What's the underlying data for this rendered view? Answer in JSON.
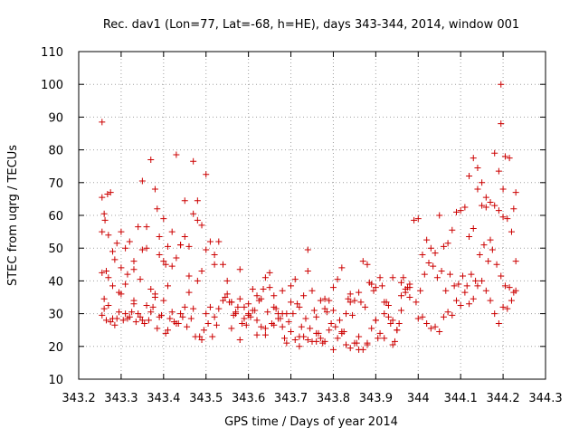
{
  "chart_data": {
    "type": "scatter",
    "title": "Rec. dav1 (Lon=77, Lat=-68, h=HE), days 343-344, 2014, window 001",
    "xlabel": "GPS time / Days of year 2014",
    "ylabel": "STEC from uqrg / TECUs",
    "xlim": [
      343.2,
      344.3
    ],
    "ylim": [
      10,
      110
    ],
    "xticks": [
      343.2,
      343.3,
      343.4,
      343.5,
      343.6,
      343.7,
      343.8,
      343.9,
      344.0,
      344.1,
      344.2,
      344.3
    ],
    "xtick_labels": [
      "343.2",
      "343.3",
      "343.4",
      "343.5",
      "343.6",
      "343.7",
      "343.8",
      "343.9",
      "344",
      "344.1",
      "344.2",
      "344.3"
    ],
    "yticks": [
      10,
      20,
      30,
      40,
      50,
      60,
      70,
      80,
      90,
      100,
      110
    ],
    "ytick_labels": [
      "10",
      "20",
      "30",
      "40",
      "50",
      "60",
      "70",
      "80",
      "90",
      "100",
      "110"
    ],
    "grid": true,
    "marker": "+",
    "marker_color": "#cc0000",
    "series": [
      {
        "x": [
          343.255,
          343.255,
          343.26,
          343.268,
          343.275,
          343.255,
          343.262,
          343.27,
          343.28,
          343.29,
          343.3,
          343.31,
          343.32,
          343.33,
          343.34,
          343.35,
          343.36,
          343.37,
          343.38,
          343.385,
          343.39,
          343.4,
          343.405,
          343.41,
          343.42,
          343.43,
          343.44,
          343.45,
          343.46,
          343.47,
          343.48,
          343.49,
          343.5,
          343.51,
          343.52,
          343.53,
          343.255,
          343.265,
          343.28,
          343.295,
          343.31,
          343.33,
          343.35,
          343.37,
          343.39,
          343.41,
          343.43,
          343.45,
          343.47,
          343.49,
          343.26,
          343.27,
          343.285,
          343.3,
          343.315,
          343.33,
          343.345,
          343.36,
          343.38,
          343.4,
          343.42,
          343.44,
          343.46,
          343.48,
          343.5,
          343.52,
          343.26,
          343.28,
          343.3,
          343.32,
          343.34,
          343.36,
          343.38,
          343.4,
          343.42,
          343.44,
          343.46,
          343.48,
          343.5,
          343.52,
          343.255,
          343.275,
          343.295,
          343.315,
          343.335,
          343.355,
          343.375,
          343.395,
          343.415,
          343.435,
          343.455,
          343.475,
          343.495,
          343.515,
          343.265,
          343.285,
          343.305,
          343.325,
          343.345,
          343.365,
          343.385,
          343.405,
          343.425,
          343.445,
          343.465,
          343.485,
          343.505,
          343.525,
          343.27,
          343.29,
          343.31,
          343.33,
          343.35,
          343.37,
          343.39,
          343.41,
          343.43,
          343.45,
          343.47,
          343.49,
          343.51,
          343.53,
          343.54,
          343.55,
          343.56,
          343.57,
          343.58,
          343.59,
          343.6,
          343.61,
          343.62,
          343.63,
          343.64,
          343.65,
          343.66,
          343.67,
          343.68,
          343.69,
          343.7,
          343.71,
          343.72,
          343.73,
          343.74,
          343.75,
          343.76,
          343.77,
          343.78,
          343.79,
          343.8,
          343.81,
          343.82,
          343.83,
          343.84,
          343.85,
          343.86,
          343.87,
          343.88,
          343.89,
          343.9,
          343.91,
          343.92,
          343.93,
          343.94,
          343.95,
          343.96,
          343.97,
          343.98,
          343.545,
          343.555,
          343.565,
          343.575,
          343.585,
          343.595,
          343.605,
          343.615,
          343.625,
          343.635,
          343.645,
          343.655,
          343.665,
          343.675,
          343.685,
          343.695,
          343.705,
          343.715,
          343.725,
          343.735,
          343.745,
          343.755,
          343.765,
          343.775,
          343.785,
          343.795,
          343.805,
          343.815,
          343.825,
          343.835,
          343.845,
          343.855,
          343.865,
          343.875,
          343.885,
          343.895,
          343.905,
          343.915,
          343.925,
          343.935,
          343.945,
          343.955,
          343.965,
          343.975,
          343.54,
          343.56,
          343.58,
          343.6,
          343.62,
          343.64,
          343.66,
          343.68,
          343.7,
          343.72,
          343.74,
          343.76,
          343.78,
          343.8,
          343.82,
          343.84,
          343.86,
          343.88,
          343.9,
          343.92,
          343.94,
          343.96,
          343.98,
          343.55,
          343.57,
          343.59,
          343.61,
          343.63,
          343.65,
          343.67,
          343.69,
          343.71,
          343.73,
          343.75,
          343.77,
          343.79,
          343.81,
          343.83,
          343.85,
          343.87,
          343.89,
          343.91,
          343.93,
          343.95,
          343.97,
          343.56,
          343.6,
          343.64,
          343.68,
          343.72,
          343.76,
          343.8,
          343.84,
          343.88,
          343.92,
          343.96,
          343.58,
          343.62,
          343.66,
          343.7,
          343.74,
          343.78,
          343.82,
          343.86,
          343.9,
          343.94,
          343.98,
          343.99,
          344.0,
          344.01,
          344.02,
          344.03,
          344.04,
          344.05,
          344.06,
          344.07,
          344.08,
          344.09,
          344.1,
          344.11,
          344.12,
          344.13,
          344.14,
          344.15,
          344.16,
          344.17,
          344.18,
          344.19,
          344.2,
          344.21,
          344.22,
          344.23,
          343.995,
          344.005,
          344.015,
          344.025,
          344.035,
          344.045,
          344.055,
          344.065,
          344.075,
          344.085,
          344.095,
          344.105,
          344.115,
          344.125,
          344.135,
          344.145,
          344.155,
          344.165,
          344.175,
          344.185,
          344.195,
          344.205,
          344.215,
          344.225,
          344.0,
          344.02,
          344.04,
          344.06,
          344.08,
          344.1,
          344.12,
          344.14,
          344.16,
          344.18,
          344.2,
          344.22,
          344.01,
          344.03,
          344.05,
          344.07,
          344.09,
          344.11,
          344.13,
          344.15,
          344.17,
          344.19,
          344.21,
          344.23,
          344.195,
          344.195,
          344.18,
          344.19,
          344.2,
          344.205,
          344.215,
          344.225,
          344.23,
          344.14,
          344.15,
          344.16,
          344.17,
          344.13,
          344.12
        ],
        "y": [
          88.5,
          65.5,
          60.5,
          66.5,
          67.0,
          55.0,
          58.5,
          54.0,
          49.0,
          51.5,
          55.0,
          50.0,
          52.0,
          46.0,
          56.5,
          49.5,
          56.5,
          77.0,
          68.0,
          62.0,
          53.5,
          59.0,
          45.0,
          50.5,
          55.0,
          78.5,
          51.0,
          64.5,
          50.5,
          76.5,
          64.5,
          57.0,
          72.5,
          52.0,
          48.0,
          52.0,
          42.5,
          43.0,
          38.5,
          36.5,
          39.0,
          43.5,
          70.5,
          37.5,
          48.0,
          38.5,
          47.0,
          53.5,
          60.5,
          43.0,
          34.5,
          41.0,
          46.5,
          44.0,
          42.0,
          33.0,
          40.5,
          50.0,
          35.0,
          46.0,
          44.5,
          51.0,
          41.5,
          58.5,
          49.5,
          45.0,
          31.5,
          28.5,
          36.0,
          29.0,
          30.0,
          32.5,
          36.0,
          34.0,
          30.5,
          30.0,
          36.5,
          40.0,
          30.0,
          29.0,
          29.5,
          27.5,
          30.5,
          28.5,
          27.5,
          27.0,
          32.0,
          29.5,
          28.5,
          27.0,
          26.0,
          23.0,
          25.0,
          23.0,
          28.0,
          26.5,
          28.0,
          30.5,
          29.0,
          28.0,
          25.5,
          24.0,
          27.5,
          29.0,
          28.5,
          23.0,
          27.0,
          26.5,
          32.5,
          28.5,
          30.0,
          34.0,
          28.0,
          30.5,
          29.0,
          25.0,
          27.0,
          32.0,
          31.5,
          22.0,
          32.0,
          31.5,
          45.0,
          40.0,
          33.5,
          30.0,
          34.5,
          28.5,
          33.0,
          31.0,
          28.0,
          26.0,
          25.5,
          42.5,
          35.5,
          30.0,
          26.0,
          21.0,
          24.5,
          22.0,
          20.0,
          23.0,
          49.5,
          21.5,
          24.0,
          22.5,
          21.5,
          25.0,
          19.0,
          22.5,
          24.0,
          20.5,
          36.0,
          21.0,
          23.0,
          19.0,
          21.0,
          25.5,
          28.0,
          24.0,
          30.0,
          32.5,
          28.0,
          25.0,
          31.0,
          36.5,
          38.0,
          35.0,
          33.5,
          29.5,
          32.0,
          27.0,
          26.5,
          29.0,
          31.0,
          34.0,
          37.5,
          30.5,
          27.0,
          31.5,
          28.5,
          22.5,
          27.5,
          30.0,
          33.0,
          26.0,
          28.5,
          25.5,
          31.0,
          24.0,
          21.0,
          30.5,
          27.0,
          26.0,
          28.0,
          24.5,
          34.5,
          29.5,
          21.0,
          33.5,
          32.0,
          39.5,
          37.0,
          22.5,
          38.5,
          33.5,
          27.0,
          21.5,
          27.0,
          41.0,
          38.0,
          34.0,
          33.5,
          43.5,
          30.0,
          35.5,
          41.0,
          32.0,
          37.0,
          38.5,
          32.0,
          43.0,
          29.0,
          34.5,
          38.0,
          44.0,
          33.5,
          36.5,
          45.0,
          38.0,
          33.5,
          41.0,
          39.5,
          35.0,
          36.0,
          30.5,
          32.0,
          37.5,
          34.5,
          38.0,
          28.5,
          30.0,
          40.5,
          35.5,
          37.0,
          34.0,
          34.0,
          40.5,
          30.0,
          34.0,
          46.0,
          39.0,
          41.0,
          29.0,
          25.0,
          37.5,
          25.5,
          29.5,
          23.5,
          30.0,
          23.0,
          21.5,
          31.0,
          19.5,
          20.5,
          22.5,
          35.5,
          22.0,
          23.5,
          26.5,
          33.5,
          22.0,
          31.5,
          24.5,
          19.0,
          28.0,
          20.5,
          39.0,
          58.5,
          59.0,
          48.0,
          52.5,
          50.0,
          48.5,
          60.0,
          50.5,
          51.5,
          55.5,
          61.0,
          61.5,
          62.5,
          72.0,
          77.5,
          68.0,
          63.0,
          62.5,
          64.0,
          63.0,
          61.5,
          59.5,
          59.0,
          55.0,
          67.0,
          33.5,
          37.0,
          42.0,
          45.5,
          44.5,
          41.0,
          43.0,
          37.0,
          42.0,
          38.5,
          39.0,
          41.5,
          38.5,
          42.0,
          40.0,
          48.0,
          51.0,
          46.0,
          49.5,
          45.0,
          41.5,
          38.5,
          38.0,
          36.5,
          28.5,
          27.0,
          26.0,
          29.0,
          29.5,
          32.5,
          33.0,
          38.5,
          37.0,
          30.0,
          32.0,
          34.0,
          29.0,
          25.5,
          24.5,
          30.5,
          34.0,
          36.5,
          34.5,
          40.0,
          34.0,
          27.0,
          31.5,
          37.0,
          100.0,
          88.0,
          79.0,
          73.5,
          68.0,
          78.0,
          77.5,
          62.0,
          46.0,
          74.5,
          70.0,
          65.5,
          52.5,
          56.0,
          53.5
        ]
      }
    ]
  }
}
